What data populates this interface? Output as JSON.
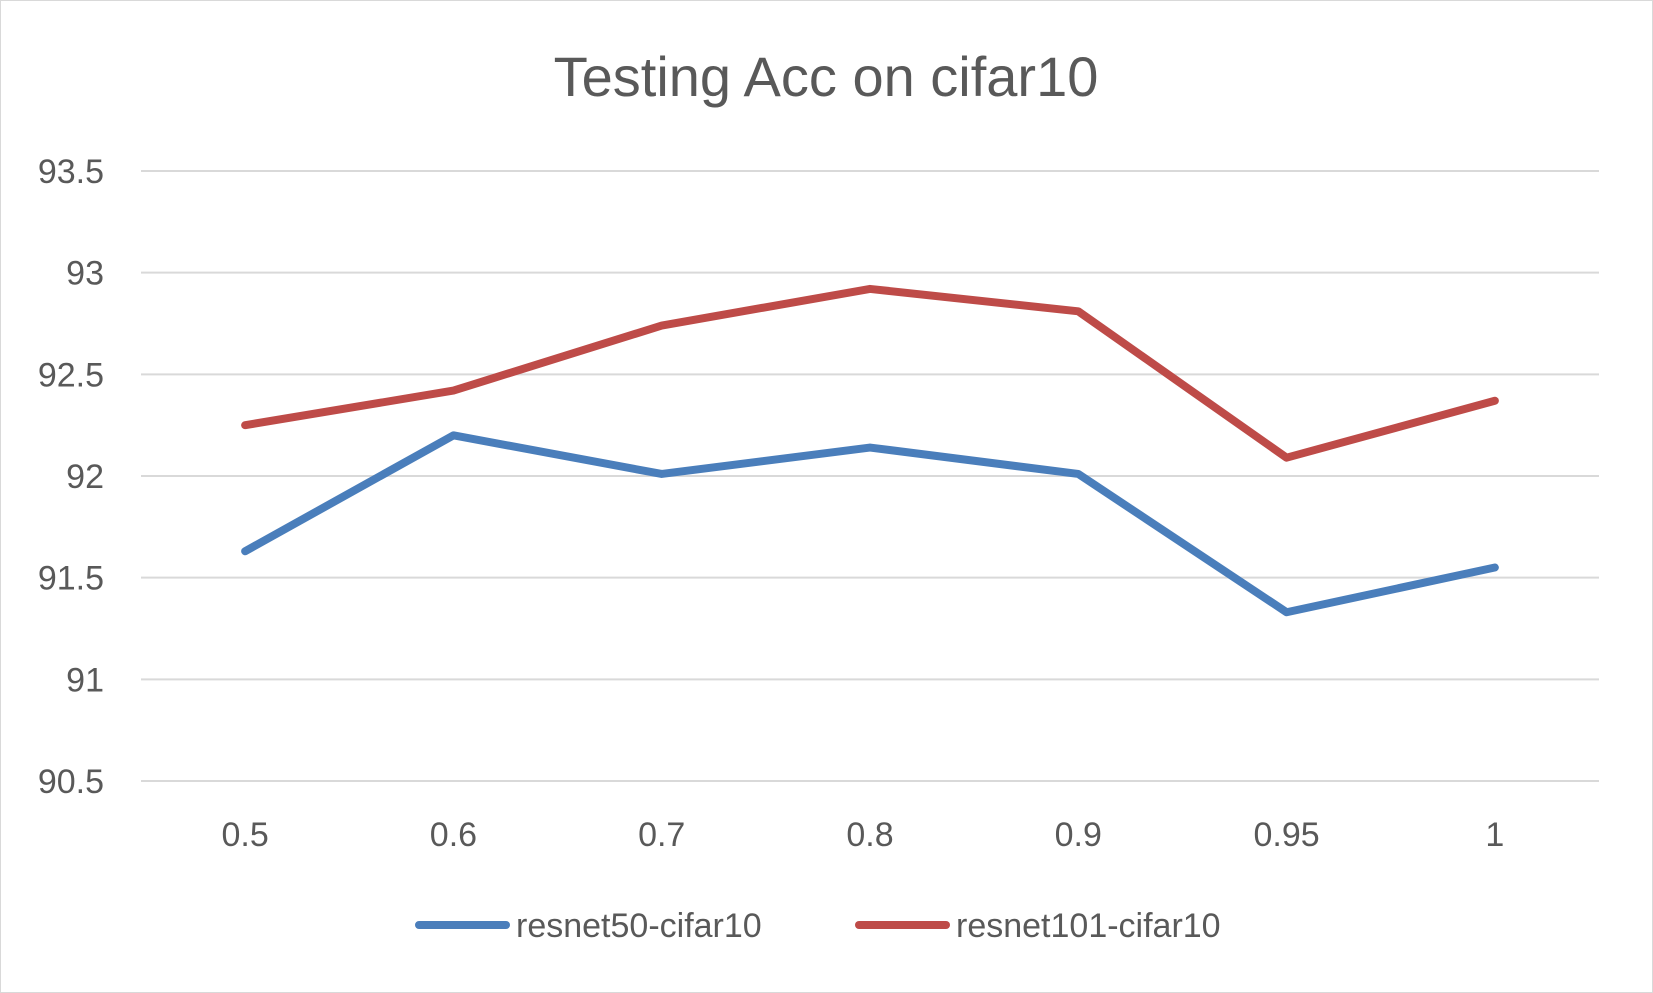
{
  "chart_data": {
    "type": "line",
    "title": "Testing Acc on cifar10",
    "xlabel": "",
    "ylabel": "",
    "categories": [
      "0.5",
      "0.6",
      "0.7",
      "0.8",
      "0.9",
      "0.95",
      "1"
    ],
    "ylim": [
      90.5,
      93.5
    ],
    "yticks": [
      "90.5",
      "91",
      "91.5",
      "92",
      "92.5",
      "93",
      "93.5"
    ],
    "ytick_values": [
      90.5,
      91,
      91.5,
      92,
      92.5,
      93,
      93.5
    ],
    "grid": true,
    "legend": "bottom",
    "series": [
      {
        "name": "resnet50-cifar10",
        "color": "#4a7ebb",
        "values": [
          91.63,
          92.2,
          92.01,
          92.14,
          92.01,
          91.33,
          91.55
        ]
      },
      {
        "name": "resnet101-cifar10",
        "color": "#be4b48",
        "values": [
          92.25,
          92.42,
          92.74,
          92.92,
          92.81,
          92.09,
          92.37
        ]
      }
    ]
  }
}
